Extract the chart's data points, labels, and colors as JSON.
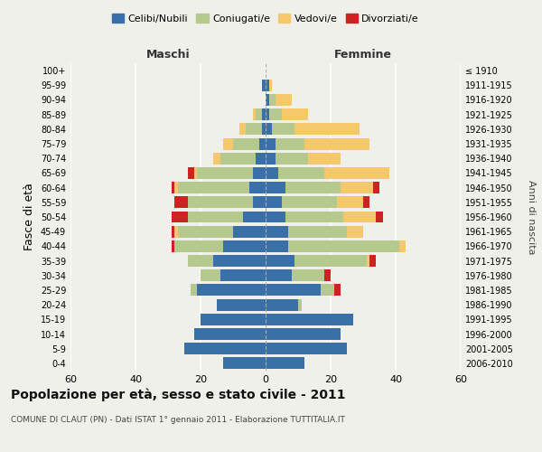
{
  "age_groups": [
    "0-4",
    "5-9",
    "10-14",
    "15-19",
    "20-24",
    "25-29",
    "30-34",
    "35-39",
    "40-44",
    "45-49",
    "50-54",
    "55-59",
    "60-64",
    "65-69",
    "70-74",
    "75-79",
    "80-84",
    "85-89",
    "90-94",
    "95-99",
    "100+"
  ],
  "birth_years": [
    "2006-2010",
    "2001-2005",
    "1996-2000",
    "1991-1995",
    "1986-1990",
    "1981-1985",
    "1976-1980",
    "1971-1975",
    "1966-1970",
    "1961-1965",
    "1956-1960",
    "1951-1955",
    "1946-1950",
    "1941-1945",
    "1936-1940",
    "1931-1935",
    "1926-1930",
    "1921-1925",
    "1916-1920",
    "1911-1915",
    "≤ 1910"
  ],
  "maschi": {
    "celibi": [
      13,
      25,
      22,
      20,
      15,
      21,
      14,
      16,
      13,
      10,
      7,
      4,
      5,
      4,
      3,
      2,
      1,
      1,
      0,
      1,
      0
    ],
    "coniugati": [
      0,
      0,
      0,
      0,
      0,
      2,
      6,
      8,
      15,
      17,
      17,
      20,
      22,
      17,
      11,
      8,
      5,
      2,
      0,
      0,
      0
    ],
    "vedovi": [
      0,
      0,
      0,
      0,
      0,
      0,
      0,
      0,
      0,
      1,
      0,
      0,
      1,
      1,
      2,
      3,
      2,
      1,
      0,
      0,
      0
    ],
    "divorziati": [
      0,
      0,
      0,
      0,
      0,
      0,
      0,
      0,
      1,
      1,
      5,
      4,
      1,
      2,
      0,
      0,
      0,
      0,
      0,
      0,
      0
    ]
  },
  "femmine": {
    "nubili": [
      12,
      25,
      23,
      27,
      10,
      17,
      8,
      9,
      7,
      7,
      6,
      5,
      6,
      4,
      3,
      3,
      2,
      1,
      1,
      1,
      0
    ],
    "coniugate": [
      0,
      0,
      0,
      0,
      1,
      4,
      10,
      22,
      34,
      18,
      18,
      17,
      17,
      14,
      10,
      9,
      7,
      4,
      2,
      0,
      0
    ],
    "vedove": [
      0,
      0,
      0,
      0,
      0,
      0,
      0,
      1,
      2,
      5,
      10,
      8,
      10,
      20,
      10,
      20,
      20,
      8,
      5,
      1,
      0
    ],
    "divorziate": [
      0,
      0,
      0,
      0,
      0,
      2,
      2,
      2,
      0,
      0,
      2,
      2,
      2,
      0,
      0,
      0,
      0,
      0,
      0,
      0,
      0
    ]
  },
  "colors": {
    "celibi": "#3a6fa8",
    "coniugati": "#b5c98e",
    "vedovi": "#f5c86e",
    "divorziati": "#cc2222"
  },
  "xlim": 60,
  "title": "Popolazione per età, sesso e stato civile - 2011",
  "subtitle": "COMUNE DI CLAUT (PN) - Dati ISTAT 1° gennaio 2011 - Elaborazione TUTTITALIA.IT",
  "ylabel_left": "Fasce di età",
  "ylabel_right": "Anni di nascita",
  "legend_labels": [
    "Celibi/Nubili",
    "Coniugati/e",
    "Vedovi/e",
    "Divorziati/e"
  ],
  "background_color": "#f0f0eb"
}
